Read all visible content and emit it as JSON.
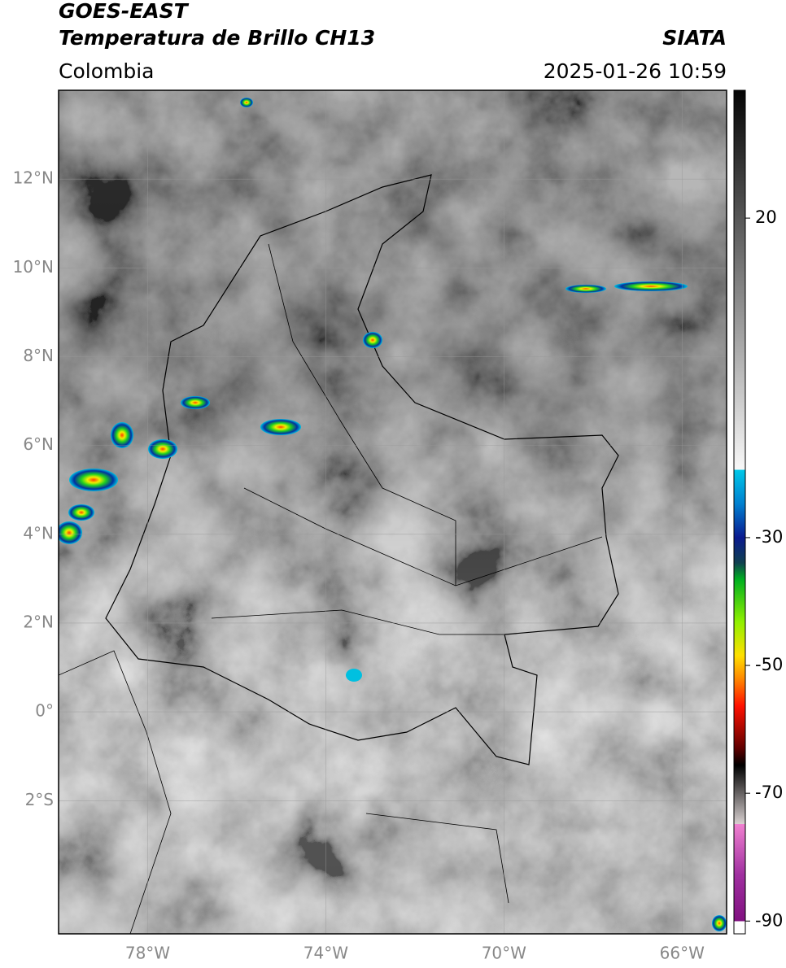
{
  "header": {
    "title": "GOES-EAST",
    "subtitle": "Temperatura de Brillo CH13",
    "source": "SIATA",
    "region": "Colombia",
    "datetime": "2025-01-26 10:59"
  },
  "map": {
    "lon_range": [
      -80,
      -65
    ],
    "lat_range": [
      -5,
      14
    ],
    "lon_ticks": [
      {
        "value": -78,
        "label": "78°W"
      },
      {
        "value": -74,
        "label": "74°W"
      },
      {
        "value": -70,
        "label": "70°W"
      },
      {
        "value": -66,
        "label": "66°W"
      }
    ],
    "lat_ticks": [
      {
        "value": 12,
        "label": "12°N"
      },
      {
        "value": 10,
        "label": "10°N"
      },
      {
        "value": 8,
        "label": "8°N"
      },
      {
        "value": 6,
        "label": "6°N"
      },
      {
        "value": 4,
        "label": "4°N"
      },
      {
        "value": 2,
        "label": "2°N"
      },
      {
        "value": 0,
        "label": "0°"
      },
      {
        "value": -2,
        "label": "2°S"
      }
    ]
  },
  "colorbar": {
    "range": [
      -92,
      40
    ],
    "ticks": [
      20,
      -30,
      -50,
      -70,
      -90
    ]
  }
}
